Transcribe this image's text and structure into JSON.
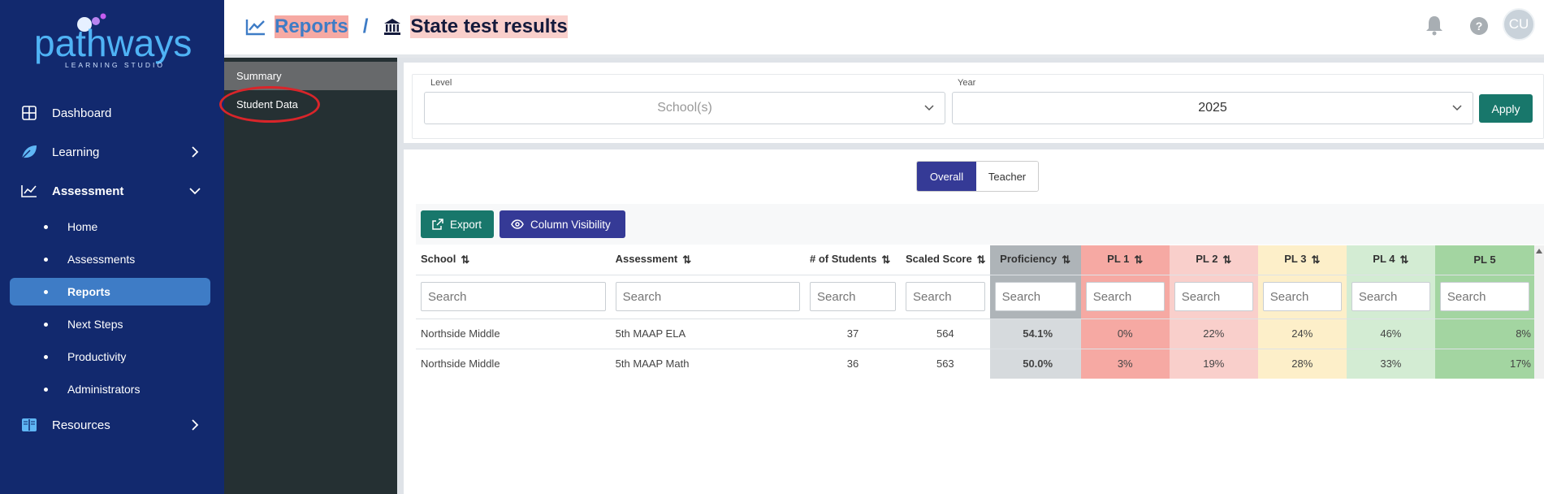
{
  "brand": {
    "name": "pathways",
    "tagline": "LEARNING STUDIO"
  },
  "sidebar": {
    "items": [
      {
        "label": "Dashboard",
        "icon": "dashboard-icon"
      },
      {
        "label": "Learning",
        "icon": "leaf-icon"
      },
      {
        "label": "Assessment",
        "icon": "chart-icon"
      },
      {
        "label": "Resources",
        "icon": "book-icon"
      }
    ],
    "assessment_sub": [
      "Home",
      "Assessments",
      "Reports",
      "Next Steps",
      "Productivity",
      "Administrators"
    ],
    "active_sub": "Reports"
  },
  "subnav": {
    "items": [
      "Summary",
      "Student Data"
    ],
    "active": "Summary"
  },
  "header": {
    "crumb_parent": "Reports",
    "separator": "/",
    "crumb_current": "State test results",
    "avatar_initials": "CU"
  },
  "filters": {
    "level_label": "Level",
    "level_value": "School(s)",
    "year_label": "Year",
    "year_value": "2025",
    "apply_label": "Apply"
  },
  "view_toggle": {
    "options": [
      "Overall",
      "Teacher"
    ],
    "selected": "Overall"
  },
  "toolbar": {
    "export_label": "Export",
    "column_visibility_label": "Column Visibility"
  },
  "table": {
    "columns": [
      "School",
      "Assessment",
      "# of Students",
      "Scaled Score",
      "Proficiency",
      "PL 1",
      "PL 2",
      "PL 3",
      "PL 4",
      "PL 5"
    ],
    "search_placeholder": "Search",
    "rows": [
      [
        "Northside Middle",
        "5th MAAP ELA",
        "37",
        "564",
        "54.1%",
        "0%",
        "22%",
        "24%",
        "46%",
        "8%"
      ],
      [
        "Northside Middle",
        "5th MAAP Math",
        "36",
        "563",
        "50.0%",
        "3%",
        "19%",
        "28%",
        "33%",
        "17%"
      ]
    ]
  },
  "colors": {
    "sidebar_bg": "#12296e",
    "active_item": "#3e7cc6",
    "primary_button": "#353a96",
    "apply_button": "#18776b",
    "pl1": "#f6a9a3",
    "pl2": "#f9cfcb",
    "pl3": "#fdefc9",
    "pl4": "#d3ecd3",
    "pl5": "#a3d5a1"
  }
}
